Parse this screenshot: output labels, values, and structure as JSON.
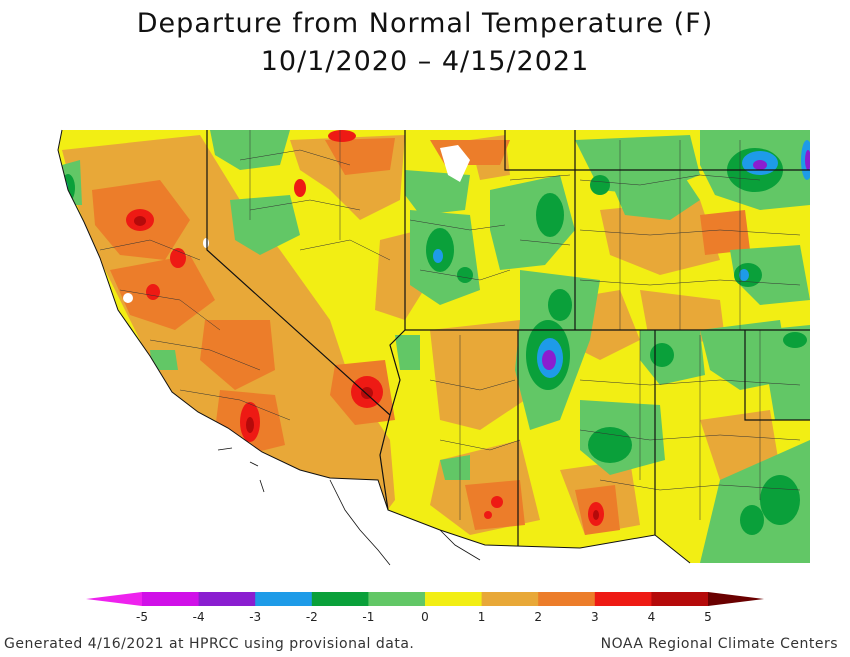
{
  "title_line1": "Departure from Normal Temperature (F)",
  "title_line2": "10/1/2020 – 4/15/2021",
  "legend": {
    "ticks": [
      "-5",
      "-4",
      "-3",
      "-2",
      "-1",
      "0",
      "1",
      "2",
      "3",
      "4",
      "5"
    ],
    "bins": [
      {
        "from": -5,
        "to": -4,
        "color": "#d010e8"
      },
      {
        "from": -4,
        "to": -3,
        "color": "#8a1ed0"
      },
      {
        "from": -3,
        "to": -2,
        "color": "#1e9be8"
      },
      {
        "from": -2,
        "to": -1,
        "color": "#0aa03a"
      },
      {
        "from": -1,
        "to": 0,
        "color": "#62c766"
      },
      {
        "from": 0,
        "to": 1,
        "color": "#f2ee14"
      },
      {
        "from": 1,
        "to": 2,
        "color": "#e8a838"
      },
      {
        "from": 2,
        "to": 3,
        "color": "#ec7d2a"
      },
      {
        "from": 3,
        "to": 4,
        "color": "#ee1a14"
      },
      {
        "from": 4,
        "to": 5,
        "color": "#b50a0a"
      }
    ],
    "low_arrow_color": "#ee22ee",
    "high_arrow_color": "#6a0000"
  },
  "footer_left": "Generated 4/16/2021 at HPRCC using provisional data.",
  "footer_right": "NOAA Regional Climate Centers"
}
